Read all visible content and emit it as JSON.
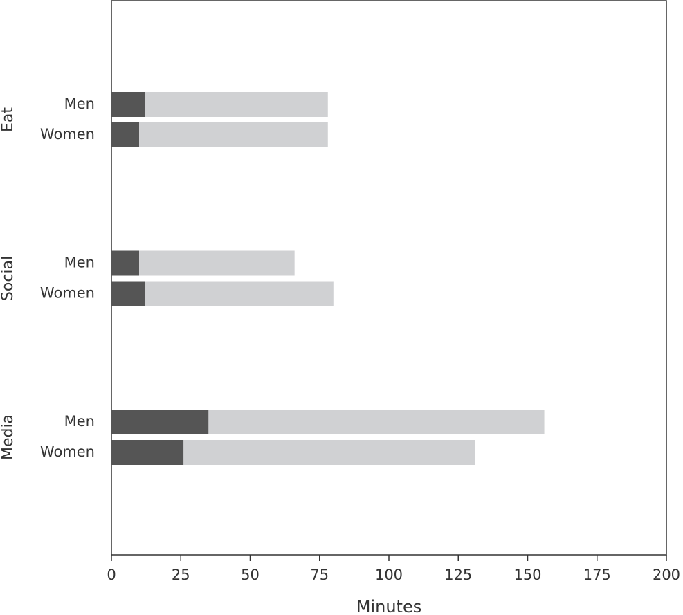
{
  "chart_data": {
    "type": "stacked-barh",
    "groups": [
      "Eat",
      "Social",
      "Media"
    ],
    "categories": [
      "Men",
      "Women",
      "Men",
      "Women",
      "Men",
      "Women"
    ],
    "series": [
      {
        "color": "#555555",
        "values": [
          12,
          10,
          10,
          12,
          35,
          26
        ]
      },
      {
        "color": "#d0d1d3",
        "values": [
          66,
          68,
          56,
          68,
          121,
          105
        ]
      }
    ],
    "xlabel": "Minutes",
    "xlim": [
      0,
      200
    ],
    "xticks": [
      0,
      25,
      50,
      75,
      100,
      125,
      150,
      175,
      200
    ]
  }
}
